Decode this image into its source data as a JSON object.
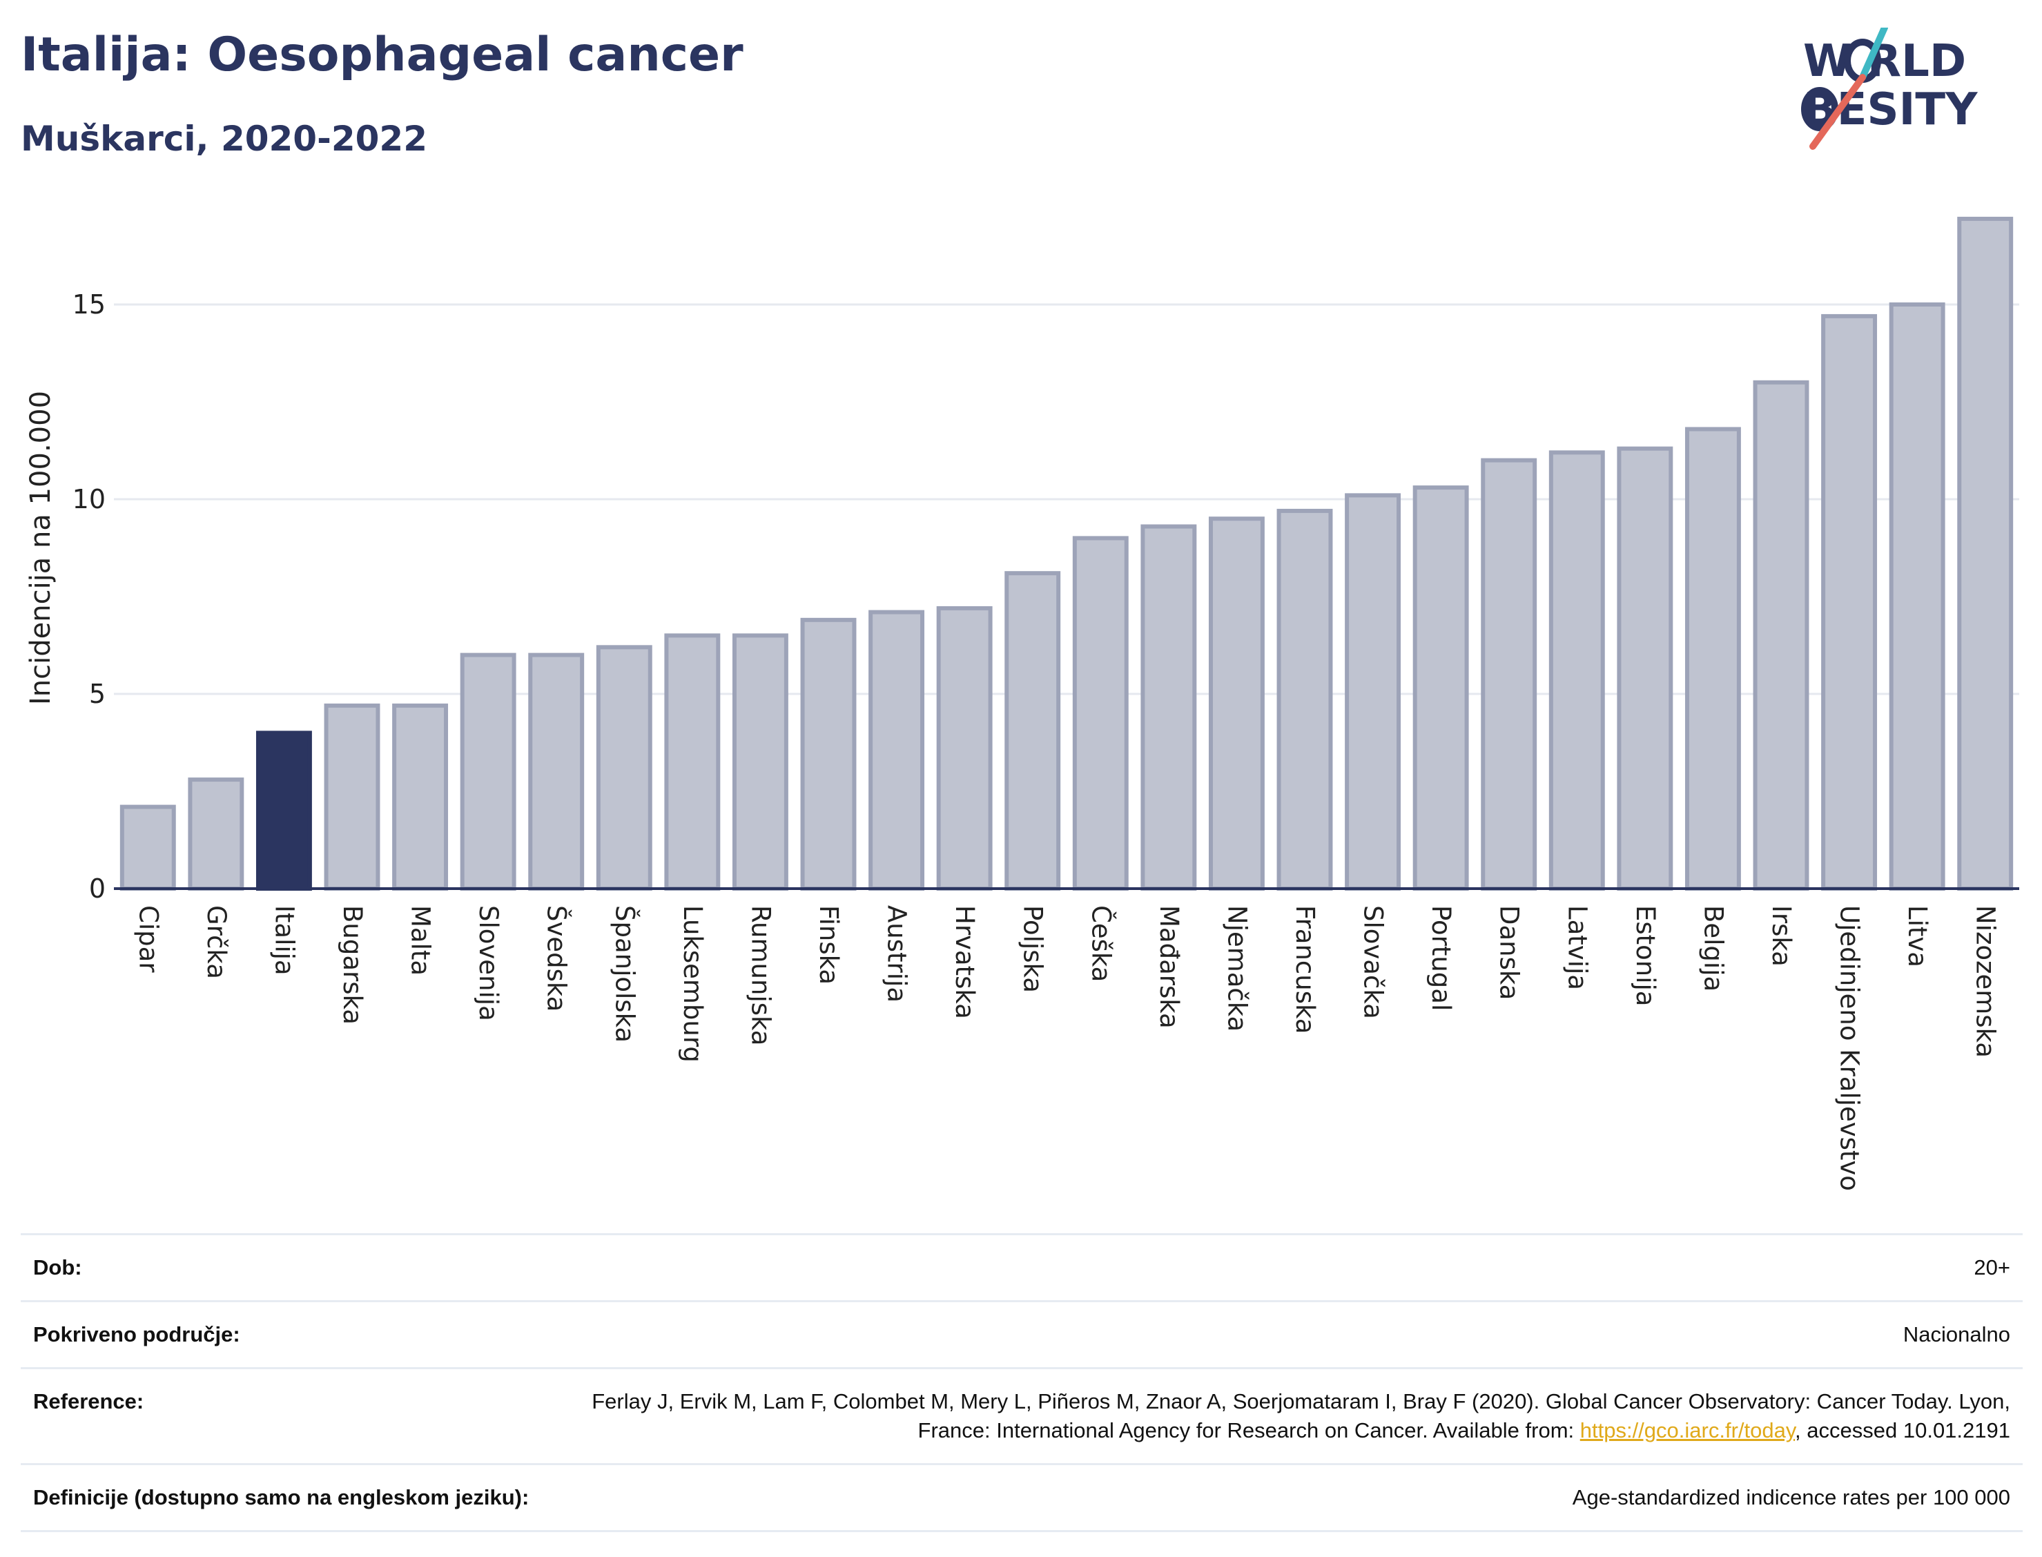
{
  "header": {
    "title": "Italija: Oesophageal cancer",
    "subtitle": "Muškarci, 2020-2022"
  },
  "logo": {
    "line1": "W RLD",
    "line2": "BESITY",
    "colors": {
      "navy": "#2b3560",
      "teal": "#3fb8c4",
      "coral": "#e4685a"
    }
  },
  "chart_data": {
    "type": "bar",
    "ylabel": "Incidencija na 100.000",
    "ylim": [
      0,
      17.5
    ],
    "yticks": [
      0,
      5,
      10,
      15
    ],
    "grid": true,
    "highlight": "Italija",
    "colors": {
      "bar": "#bfc3d0",
      "bar_edge": "#9da3b8",
      "highlight": "#2b3560",
      "grid": "#e6e9ef",
      "axis": "#2b3560"
    },
    "categories": [
      "Cipar",
      "Grčka",
      "Italija",
      "Bugarska",
      "Malta",
      "Slovenija",
      "Švedska",
      "Španjolska",
      "Luksemburg",
      "Rumunjska",
      "Finska",
      "Austrija",
      "Hrvatska",
      "Poljska",
      "Češka",
      "Mađarska",
      "Njemačka",
      "Francuska",
      "Slovačka",
      "Portugal",
      "Danska",
      "Latvija",
      "Estonija",
      "Belgija",
      "Irska",
      "Ujedinjeno Kraljevstvo",
      "Litva",
      "Nizozemska"
    ],
    "values": [
      2.1,
      2.8,
      4.0,
      4.7,
      4.7,
      6.0,
      6.0,
      6.2,
      6.5,
      6.5,
      6.9,
      7.1,
      7.2,
      8.1,
      9.0,
      9.3,
      9.5,
      9.7,
      10.1,
      10.3,
      11.0,
      11.2,
      11.3,
      11.8,
      13.0,
      14.7,
      15.0,
      17.2
    ]
  },
  "meta": {
    "dob_label": "Dob:",
    "dob_value": "20+",
    "area_label": "Pokriveno područje:",
    "area_value": "Nacionalno",
    "ref_label": "Reference:",
    "ref_text_1": "Ferlay J, Ervik M, Lam F, Colombet M, Mery L, Piñeros M, Znaor A, Soerjomataram I, Bray F (2020). Global Cancer Observatory: Cancer Today. Lyon, France: International Agency for Research on Cancer. Available from: ",
    "ref_link": "https://gco.iarc.fr/today",
    "ref_text_2": ", accessed 10.01.2191",
    "def_label": "Definicije (dostupno samo na engleskom jeziku):",
    "def_value": "Age-standardized indicence rates per 100 000"
  }
}
